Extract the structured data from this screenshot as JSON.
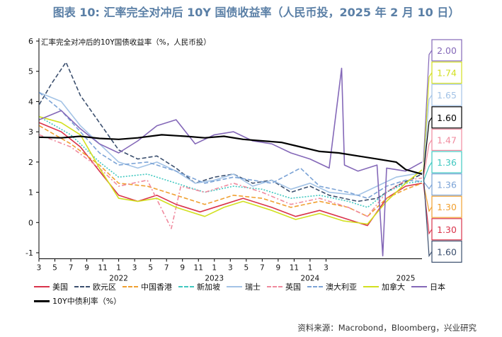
{
  "title": "图表 10: 汇率完全对冲后 10Y 国债收益率（人民币投，2025 年 2 月 10 日）",
  "source": "资料来源：Macrobond，Bloomberg，兴业研究",
  "chart_data": {
    "type": "line",
    "inner_title": "汇率完全对冲后的10Y国债收益率（%，人民币投）",
    "ylim": [
      -1,
      6
    ],
    "yticks": [
      "-1",
      "0",
      "1",
      "2",
      "3",
      "4",
      "5",
      "6"
    ],
    "xlim": [
      2021.167,
      2025.17
    ],
    "month_ticks": [
      "3",
      "5",
      "7",
      "9",
      "11",
      "1",
      "3",
      "5",
      "7",
      "9",
      "11",
      "1",
      "3",
      "5",
      "7",
      "9",
      "11",
      "1",
      "3"
    ],
    "years": [
      "2022",
      "2023",
      "2024",
      "2025"
    ],
    "grid": false,
    "series": [
      {
        "name": "美国",
        "color": "#d9334b",
        "dash": "solid",
        "end_label": "1.30",
        "points": [
          [
            2021.17,
            3.3
          ],
          [
            2021.4,
            3.0
          ],
          [
            2021.6,
            2.5
          ],
          [
            2021.8,
            1.7
          ],
          [
            2022.0,
            0.9
          ],
          [
            2022.2,
            0.7
          ],
          [
            2022.4,
            0.9
          ],
          [
            2022.6,
            0.6
          ],
          [
            2022.85,
            0.35
          ],
          [
            2023.1,
            0.6
          ],
          [
            2023.3,
            0.8
          ],
          [
            2023.6,
            0.5
          ],
          [
            2023.85,
            0.2
          ],
          [
            2024.1,
            0.4
          ],
          [
            2024.35,
            0.15
          ],
          [
            2024.6,
            -0.1
          ],
          [
            2024.8,
            0.8
          ],
          [
            2025.0,
            1.2
          ],
          [
            2025.17,
            1.3
          ]
        ]
      },
      {
        "name": "欧元区",
        "color": "#3b4f6e",
        "dash": "6,3",
        "end_label": "1.60",
        "points": [
          [
            2021.17,
            3.9
          ],
          [
            2021.3,
            4.6
          ],
          [
            2021.45,
            5.3
          ],
          [
            2021.6,
            4.2
          ],
          [
            2021.8,
            3.3
          ],
          [
            2022.0,
            2.4
          ],
          [
            2022.2,
            2.1
          ],
          [
            2022.4,
            2.2
          ],
          [
            2022.6,
            1.8
          ],
          [
            2022.8,
            1.3
          ],
          [
            2023.0,
            1.5
          ],
          [
            2023.2,
            1.6
          ],
          [
            2023.4,
            1.3
          ],
          [
            2023.6,
            1.4
          ],
          [
            2023.8,
            1.0
          ],
          [
            2024.0,
            1.2
          ],
          [
            2024.2,
            0.9
          ],
          [
            2024.5,
            0.7
          ],
          [
            2024.7,
            0.8
          ],
          [
            2024.9,
            1.2
          ],
          [
            2025.17,
            1.6
          ]
        ]
      },
      {
        "name": "中国香港",
        "color": "#f0a030",
        "dash": "6,3",
        "end_label": "1.30",
        "points": [
          [
            2021.17,
            3.2
          ],
          [
            2021.5,
            2.6
          ],
          [
            2021.8,
            1.9
          ],
          [
            2022.0,
            1.3
          ],
          [
            2022.3,
            1.2
          ],
          [
            2022.6,
            0.9
          ],
          [
            2022.9,
            0.6
          ],
          [
            2023.2,
            0.9
          ],
          [
            2023.5,
            0.8
          ],
          [
            2023.8,
            0.5
          ],
          [
            2024.1,
            0.7
          ],
          [
            2024.4,
            0.5
          ],
          [
            2024.6,
            0.2
          ],
          [
            2024.8,
            0.8
          ],
          [
            2025.0,
            1.1
          ],
          [
            2025.17,
            1.3
          ]
        ]
      },
      {
        "name": "新加坡",
        "color": "#40c8c0",
        "dash": "2,2",
        "end_label": "1.36",
        "points": [
          [
            2021.17,
            3.5
          ],
          [
            2021.5,
            2.9
          ],
          [
            2021.8,
            2.0
          ],
          [
            2022.0,
            1.5
          ],
          [
            2022.3,
            1.6
          ],
          [
            2022.6,
            1.3
          ],
          [
            2022.9,
            1.0
          ],
          [
            2023.2,
            1.2
          ],
          [
            2023.5,
            1.1
          ],
          [
            2023.8,
            0.8
          ],
          [
            2024.1,
            0.9
          ],
          [
            2024.4,
            0.7
          ],
          [
            2024.6,
            0.5
          ],
          [
            2024.8,
            1.0
          ],
          [
            2025.0,
            1.3
          ],
          [
            2025.17,
            1.36
          ]
        ]
      },
      {
        "name": "瑞士",
        "color": "#a3c3e6",
        "dash": "solid",
        "end_label": "1.65",
        "points": [
          [
            2021.17,
            4.3
          ],
          [
            2021.4,
            4.0
          ],
          [
            2021.6,
            3.2
          ],
          [
            2021.8,
            2.6
          ],
          [
            2022.0,
            2.0
          ],
          [
            2022.2,
            1.8
          ],
          [
            2022.4,
            2.0
          ],
          [
            2022.6,
            1.7
          ],
          [
            2022.8,
            1.3
          ],
          [
            2023.0,
            1.4
          ],
          [
            2023.2,
            1.6
          ],
          [
            2023.4,
            1.2
          ],
          [
            2023.6,
            1.4
          ],
          [
            2023.8,
            1.1
          ],
          [
            2024.0,
            1.3
          ],
          [
            2024.2,
            1.0
          ],
          [
            2024.5,
            0.9
          ],
          [
            2024.7,
            1.2
          ],
          [
            2024.9,
            1.5
          ],
          [
            2025.17,
            1.65
          ]
        ]
      },
      {
        "name": "英国",
        "color": "#f08a9e",
        "dash": "6,3,2,3",
        "end_label": "1.47",
        "points": [
          [
            2021.17,
            2.9
          ],
          [
            2021.5,
            2.5
          ],
          [
            2021.8,
            1.8
          ],
          [
            2022.0,
            1.2
          ],
          [
            2022.3,
            1.4
          ],
          [
            2022.55,
            -0.2
          ],
          [
            2022.65,
            1.2
          ],
          [
            2022.9,
            1.0
          ],
          [
            2023.2,
            1.3
          ],
          [
            2023.5,
            1.0
          ],
          [
            2023.8,
            0.6
          ],
          [
            2024.1,
            0.8
          ],
          [
            2024.4,
            0.5
          ],
          [
            2024.6,
            0.2
          ],
          [
            2024.8,
            1.0
          ],
          [
            2025.0,
            1.4
          ],
          [
            2025.17,
            1.47
          ]
        ]
      },
      {
        "name": "澳大利亚",
        "color": "#7ba3d6",
        "dash": "6,3",
        "end_label": "1.36",
        "points": [
          [
            2021.17,
            4.3
          ],
          [
            2021.4,
            3.7
          ],
          [
            2021.6,
            3.0
          ],
          [
            2021.8,
            2.3
          ],
          [
            2022.0,
            1.9
          ],
          [
            2022.3,
            2.0
          ],
          [
            2022.6,
            1.7
          ],
          [
            2022.9,
            1.3
          ],
          [
            2023.2,
            1.5
          ],
          [
            2023.6,
            1.3
          ],
          [
            2023.9,
            1.8
          ],
          [
            2024.1,
            1.2
          ],
          [
            2024.4,
            1.0
          ],
          [
            2024.6,
            0.8
          ],
          [
            2024.8,
            1.2
          ],
          [
            2025.0,
            1.4
          ],
          [
            2025.17,
            1.36
          ]
        ]
      },
      {
        "name": "加拿大",
        "color": "#d2e020",
        "dash": "solid",
        "end_label": "1.74",
        "points": [
          [
            2021.17,
            3.5
          ],
          [
            2021.4,
            3.3
          ],
          [
            2021.6,
            2.9
          ],
          [
            2021.8,
            1.8
          ],
          [
            2022.0,
            0.8
          ],
          [
            2022.2,
            0.7
          ],
          [
            2022.4,
            0.8
          ],
          [
            2022.6,
            0.5
          ],
          [
            2022.9,
            0.2
          ],
          [
            2023.1,
            0.5
          ],
          [
            2023.3,
            0.7
          ],
          [
            2023.6,
            0.4
          ],
          [
            2023.85,
            0.1
          ],
          [
            2024.1,
            0.3
          ],
          [
            2024.35,
            0.05
          ],
          [
            2024.6,
            -0.05
          ],
          [
            2024.8,
            0.7
          ],
          [
            2025.0,
            1.3
          ],
          [
            2025.17,
            1.74
          ]
        ]
      },
      {
        "name": "日本",
        "color": "#8468b8",
        "dash": "solid",
        "end_label": "2.00",
        "points": [
          [
            2021.17,
            3.4
          ],
          [
            2021.4,
            3.7
          ],
          [
            2021.6,
            3.1
          ],
          [
            2021.8,
            2.6
          ],
          [
            2022.0,
            2.3
          ],
          [
            2022.2,
            2.7
          ],
          [
            2022.4,
            3.2
          ],
          [
            2022.6,
            3.4
          ],
          [
            2022.8,
            2.6
          ],
          [
            2023.0,
            2.9
          ],
          [
            2023.2,
            3.0
          ],
          [
            2023.4,
            2.7
          ],
          [
            2023.6,
            2.6
          ],
          [
            2023.8,
            2.3
          ],
          [
            2024.0,
            2.1
          ],
          [
            2024.2,
            1.8
          ],
          [
            2024.33,
            5.1
          ],
          [
            2024.36,
            1.9
          ],
          [
            2024.5,
            1.7
          ],
          [
            2024.7,
            1.9
          ],
          [
            2024.76,
            -1.1
          ],
          [
            2024.8,
            1.8
          ],
          [
            2025.0,
            1.7
          ],
          [
            2025.17,
            2.0
          ]
        ]
      },
      {
        "name": "10Y中债利率（%）",
        "color": "#000000",
        "dash": "solid",
        "width": 2.2,
        "end_label": "1.60",
        "points": [
          [
            2021.17,
            2.82
          ],
          [
            2021.4,
            2.8
          ],
          [
            2021.6,
            2.85
          ],
          [
            2021.8,
            2.78
          ],
          [
            2022.0,
            2.75
          ],
          [
            2022.2,
            2.8
          ],
          [
            2022.45,
            2.9
          ],
          [
            2022.7,
            2.85
          ],
          [
            2022.9,
            2.8
          ],
          [
            2023.1,
            2.85
          ],
          [
            2023.3,
            2.75
          ],
          [
            2023.5,
            2.7
          ],
          [
            2023.7,
            2.65
          ],
          [
            2023.9,
            2.5
          ],
          [
            2024.1,
            2.35
          ],
          [
            2024.3,
            2.3
          ],
          [
            2024.5,
            2.2
          ],
          [
            2024.7,
            2.1
          ],
          [
            2024.9,
            2.0
          ],
          [
            2025.0,
            1.75
          ],
          [
            2025.17,
            1.6
          ]
        ]
      }
    ]
  }
}
